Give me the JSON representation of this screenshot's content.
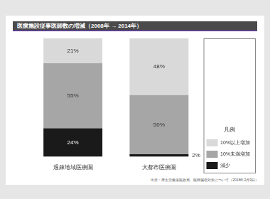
{
  "chart_data": {
    "type": "bar",
    "title": "医療施設従事医師数の増減（2008年 → 2014年）",
    "categories": [
      "過疎地域医療圏",
      "大都市医療圏"
    ],
    "series": [
      {
        "name": "減少",
        "color": "#1a1a1a",
        "values": [
          24,
          2
        ],
        "value_labels": [
          "24%",
          "2%"
        ]
      },
      {
        "name": "10%未満増加",
        "color": "#a6a6a6",
        "values": [
          55,
          50
        ],
        "value_labels": [
          "55%",
          "50%"
        ]
      },
      {
        "name": "10%以上増加",
        "color": "#d9d9d9",
        "values": [
          21,
          48
        ],
        "value_labels": [
          "21%",
          "48%"
        ]
      }
    ],
    "stacked": true,
    "data_labels": true,
    "legend": "right",
    "legend_title": "凡例",
    "tick_labels": "x",
    "grid": false,
    "source": "出所：厚生労働省医政局、医師偏在対策について（2018年2月9日）"
  }
}
